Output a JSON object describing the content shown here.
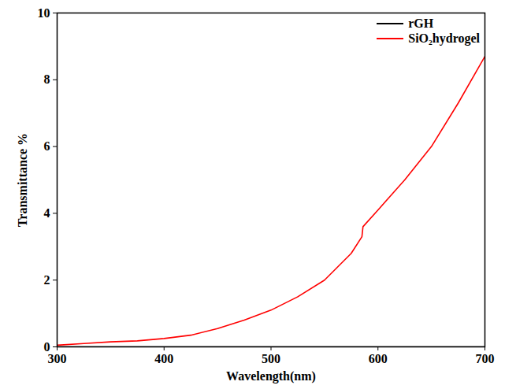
{
  "chart_data": {
    "type": "line",
    "x_label": "Wavelength(nm)",
    "y_label": "Transmittance %",
    "x": [
      300,
      325,
      350,
      375,
      400,
      425,
      450,
      475,
      500,
      525,
      550,
      575,
      585,
      586,
      600,
      625,
      650,
      675,
      700
    ],
    "series": [
      {
        "name": "rGH",
        "color": "#000000",
        "values": [
          0,
          0,
          0,
          0,
          0,
          0,
          0,
          0,
          0,
          0,
          0,
          0,
          0,
          0,
          0,
          0,
          0,
          0,
          0
        ]
      },
      {
        "name": "SiO₂hydrogel",
        "color": "#ff0000",
        "values": [
          0.05,
          0.1,
          0.15,
          0.18,
          0.25,
          0.35,
          0.55,
          0.8,
          1.1,
          1.5,
          2.0,
          2.8,
          3.3,
          3.6,
          4.1,
          5.0,
          6.0,
          7.3,
          8.7
        ]
      }
    ],
    "xlim": [
      300,
      700
    ],
    "xticks": [
      300,
      400,
      500,
      600,
      700
    ],
    "ylim": [
      0,
      10
    ],
    "yticks": [
      0,
      2,
      4,
      6,
      8,
      10
    ],
    "grid": false,
    "legend": "top-right"
  }
}
